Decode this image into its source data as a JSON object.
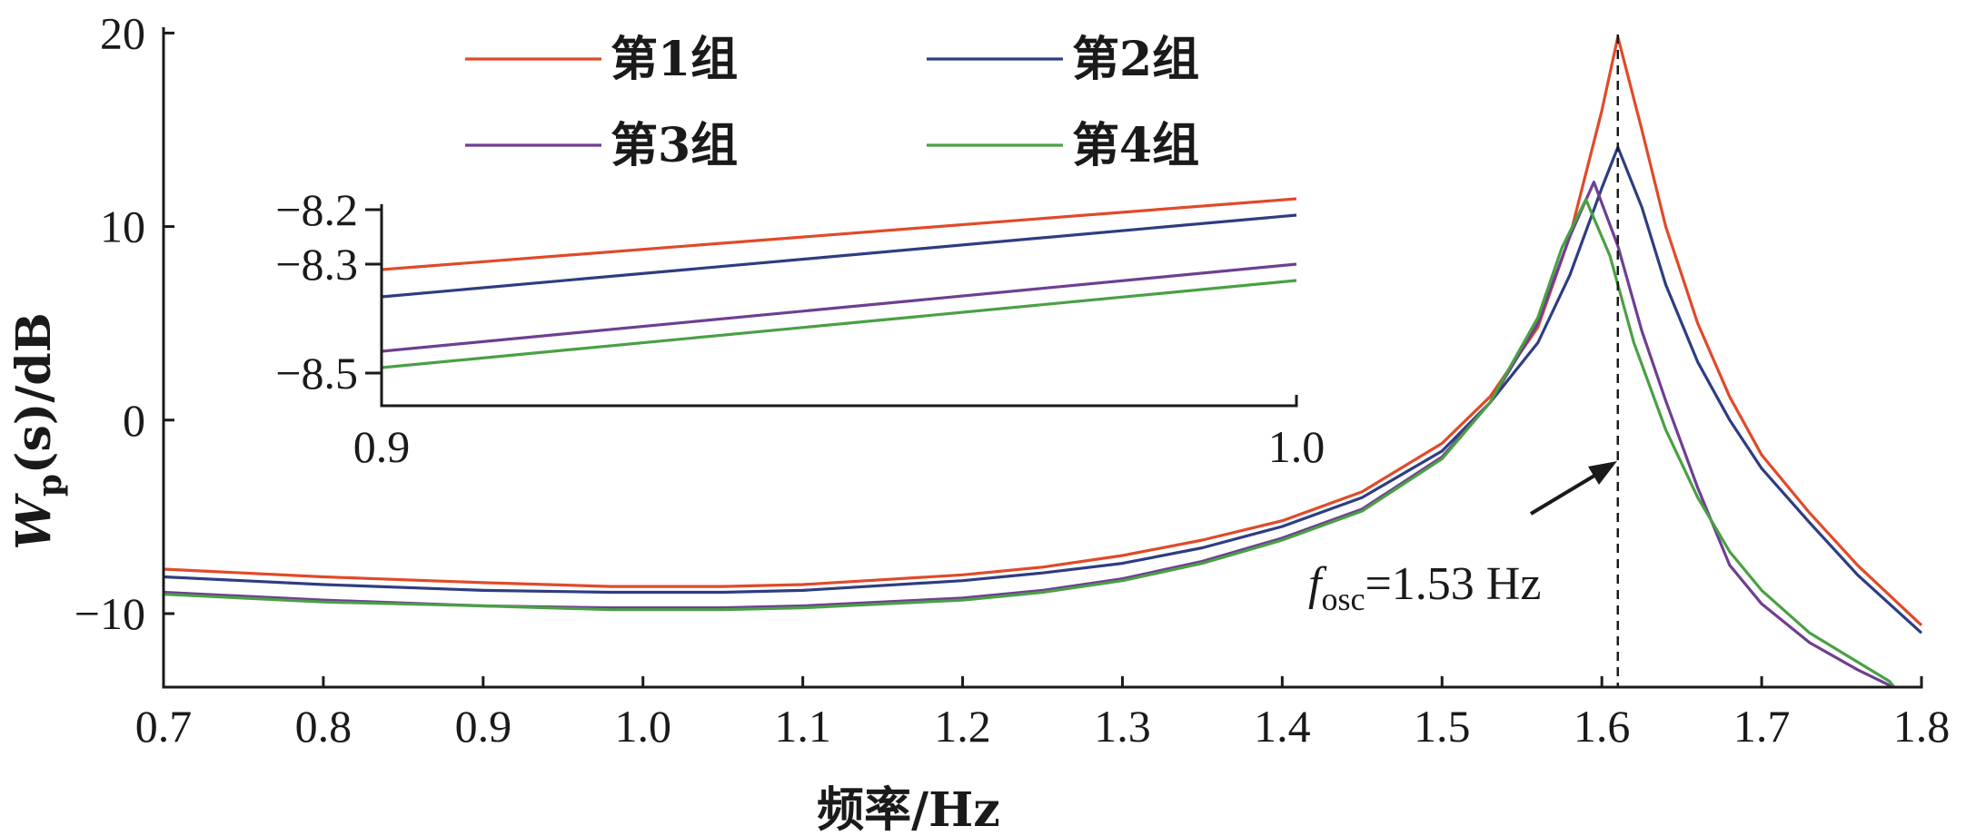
{
  "chart_data": {
    "type": "line",
    "xlabel": "频率/Hz",
    "ylabel": {
      "main": "W",
      "sub": "p",
      "rest": "(s)/dB"
    },
    "xlim": [
      0.7,
      1.8
    ],
    "ylim": [
      -13.8,
      20.3
    ],
    "xticks": [
      "0.7",
      "0.8",
      "0.9",
      "1.0",
      "1.1",
      "1.2",
      "1.3",
      "1.4",
      "1.5",
      "1.6",
      "1.7",
      "1.8"
    ],
    "yticks": [
      "20",
      "10",
      "0",
      "−10"
    ],
    "legend_position": "top",
    "series": [
      {
        "name": "第1组",
        "color": "#e04a2a",
        "x": [
          0.7,
          0.8,
          0.9,
          0.98,
          1.05,
          1.1,
          1.2,
          1.25,
          1.3,
          1.35,
          1.4,
          1.45,
          1.5,
          1.53,
          1.56,
          1.58,
          1.6,
          1.61,
          1.625,
          1.64,
          1.66,
          1.68,
          1.7,
          1.73,
          1.76,
          1.8
        ],
        "y": [
          -7.7,
          -8.1,
          -8.4,
          -8.6,
          -8.6,
          -8.5,
          -8.0,
          -7.6,
          -7.0,
          -6.2,
          -5.2,
          -3.7,
          -1.2,
          1.2,
          4.8,
          9.5,
          16.0,
          19.8,
          15.0,
          10.0,
          5.0,
          1.2,
          -1.8,
          -4.8,
          -7.5,
          -10.6
        ]
      },
      {
        "name": "第2组",
        "color": "#2e3d82",
        "x": [
          0.7,
          0.8,
          0.9,
          0.98,
          1.05,
          1.1,
          1.2,
          1.25,
          1.3,
          1.35,
          1.4,
          1.45,
          1.5,
          1.53,
          1.56,
          1.58,
          1.6,
          1.61,
          1.625,
          1.64,
          1.66,
          1.68,
          1.7,
          1.73,
          1.76,
          1.8
        ],
        "y": [
          -8.1,
          -8.5,
          -8.8,
          -8.9,
          -8.9,
          -8.8,
          -8.3,
          -7.9,
          -7.4,
          -6.6,
          -5.5,
          -4.0,
          -1.6,
          0.9,
          4.0,
          7.5,
          12.0,
          14.1,
          11.0,
          7.0,
          3.0,
          0.0,
          -2.5,
          -5.3,
          -8.0,
          -11.0
        ]
      },
      {
        "name": "第3组",
        "color": "#6e3f92",
        "x": [
          0.7,
          0.8,
          0.9,
          0.98,
          1.05,
          1.1,
          1.2,
          1.25,
          1.3,
          1.35,
          1.4,
          1.45,
          1.5,
          1.53,
          1.56,
          1.58,
          1.595,
          1.61,
          1.625,
          1.64,
          1.66,
          1.68,
          1.7,
          1.73,
          1.76,
          1.78,
          1.79
        ],
        "y": [
          -8.9,
          -9.3,
          -9.6,
          -9.7,
          -9.7,
          -9.6,
          -9.2,
          -8.8,
          -8.2,
          -7.3,
          -6.1,
          -4.6,
          -1.9,
          0.9,
          5.0,
          9.5,
          12.3,
          9.0,
          4.6,
          1.0,
          -3.5,
          -7.5,
          -9.5,
          -11.5,
          -12.9,
          -13.7,
          -14.2
        ]
      },
      {
        "name": "第4组",
        "color": "#4aa044",
        "x": [
          0.7,
          0.8,
          0.9,
          0.98,
          1.05,
          1.1,
          1.2,
          1.25,
          1.3,
          1.35,
          1.4,
          1.45,
          1.5,
          1.53,
          1.56,
          1.575,
          1.59,
          1.605,
          1.62,
          1.64,
          1.66,
          1.68,
          1.7,
          1.73,
          1.76,
          1.78,
          1.785
        ],
        "y": [
          -9.0,
          -9.4,
          -9.6,
          -9.8,
          -9.8,
          -9.7,
          -9.3,
          -8.9,
          -8.3,
          -7.4,
          -6.2,
          -4.7,
          -2.0,
          0.9,
          5.3,
          8.9,
          11.4,
          8.5,
          4.0,
          -0.5,
          -4.0,
          -6.8,
          -8.8,
          -11.0,
          -12.5,
          -13.5,
          -14.0
        ]
      }
    ],
    "inset": {
      "xlim": [
        0.9,
        1.0
      ],
      "ylim": [
        -8.56,
        -8.19
      ],
      "xticks": [
        "0.9",
        "1.0"
      ],
      "yticks": [
        {
          "label": "−8.2",
          "value": -8.2
        },
        {
          "label": "−8.3",
          "value": -8.3
        },
        {
          "label": "−8.5",
          "value": -8.5
        }
      ],
      "lines": [
        {
          "color": "#e04a2a",
          "y": [
            -8.31,
            -8.18
          ]
        },
        {
          "color": "#2e3d82",
          "y": [
            -8.36,
            -8.21
          ]
        },
        {
          "color": "#6e3f92",
          "y": [
            -8.46,
            -8.3
          ]
        },
        {
          "color": "#4aa044",
          "y": [
            -8.49,
            -8.33
          ]
        }
      ]
    },
    "annotation": {
      "f": "f",
      "sub": "osc",
      "text": "=1.53 Hz",
      "marker_x": 1.61
    }
  }
}
